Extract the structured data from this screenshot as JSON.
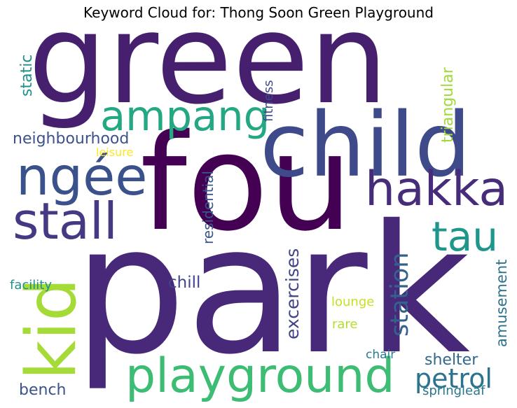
{
  "title": "Keyword Cloud for: Thong Soon Green Playground",
  "words": [
    {
      "text": "green",
      "color": "#46206e",
      "orientation": "horizontal"
    },
    {
      "text": "park",
      "color": "#482878",
      "orientation": "horizontal"
    },
    {
      "text": "fou",
      "color": "#440154",
      "orientation": "horizontal"
    },
    {
      "text": "child",
      "color": "#3e4a89",
      "orientation": "horizontal"
    },
    {
      "text": "playground",
      "color": "#3dbc74",
      "orientation": "horizontal"
    },
    {
      "text": "ampang",
      "color": "#23a883",
      "orientation": "horizontal"
    },
    {
      "text": "ngée",
      "color": "#3b518b",
      "orientation": "horizontal"
    },
    {
      "text": "hakka",
      "color": "#472c7a",
      "orientation": "horizontal"
    },
    {
      "text": "stall",
      "color": "#443a83",
      "orientation": "horizontal"
    },
    {
      "text": "kid",
      "color": "#a5db36",
      "orientation": "vertical"
    },
    {
      "text": "tau",
      "color": "#1f968b",
      "orientation": "horizontal"
    },
    {
      "text": "petrol",
      "color": "#2c738e",
      "orientation": "horizontal"
    },
    {
      "text": "station",
      "color": "#33638d",
      "orientation": "vertical"
    },
    {
      "text": "excercises",
      "color": "#414487",
      "orientation": "vertical"
    },
    {
      "text": "neighbourhood",
      "color": "#3b528b",
      "orientation": "horizontal"
    },
    {
      "text": "residential",
      "color": "#39568c",
      "orientation": "vertical"
    },
    {
      "text": "chill",
      "color": "#414487",
      "orientation": "horizontal"
    },
    {
      "text": "bench",
      "color": "#3b528b",
      "orientation": "horizontal"
    },
    {
      "text": "shelter",
      "color": "#31688e",
      "orientation": "horizontal"
    },
    {
      "text": "amusement",
      "color": "#2c728e",
      "orientation": "vertical"
    },
    {
      "text": "triangular",
      "color": "#a0da39",
      "orientation": "vertical"
    },
    {
      "text": "static",
      "color": "#218f8d",
      "orientation": "vertical"
    },
    {
      "text": "fitness",
      "color": "#3e4989",
      "orientation": "vertical"
    },
    {
      "text": "facility",
      "color": "#21918c",
      "orientation": "horizontal"
    },
    {
      "text": "leisure",
      "color": "#fde725",
      "orientation": "horizontal"
    },
    {
      "text": "lounge",
      "color": "#c8e020",
      "orientation": "horizontal"
    },
    {
      "text": "rare",
      "color": "#b5de2b",
      "orientation": "horizontal"
    },
    {
      "text": "chair",
      "color": "#287c8e",
      "orientation": "horizontal"
    },
    {
      "text": "springleaf",
      "color": "#2a768e",
      "orientation": "horizontal"
    }
  ]
}
